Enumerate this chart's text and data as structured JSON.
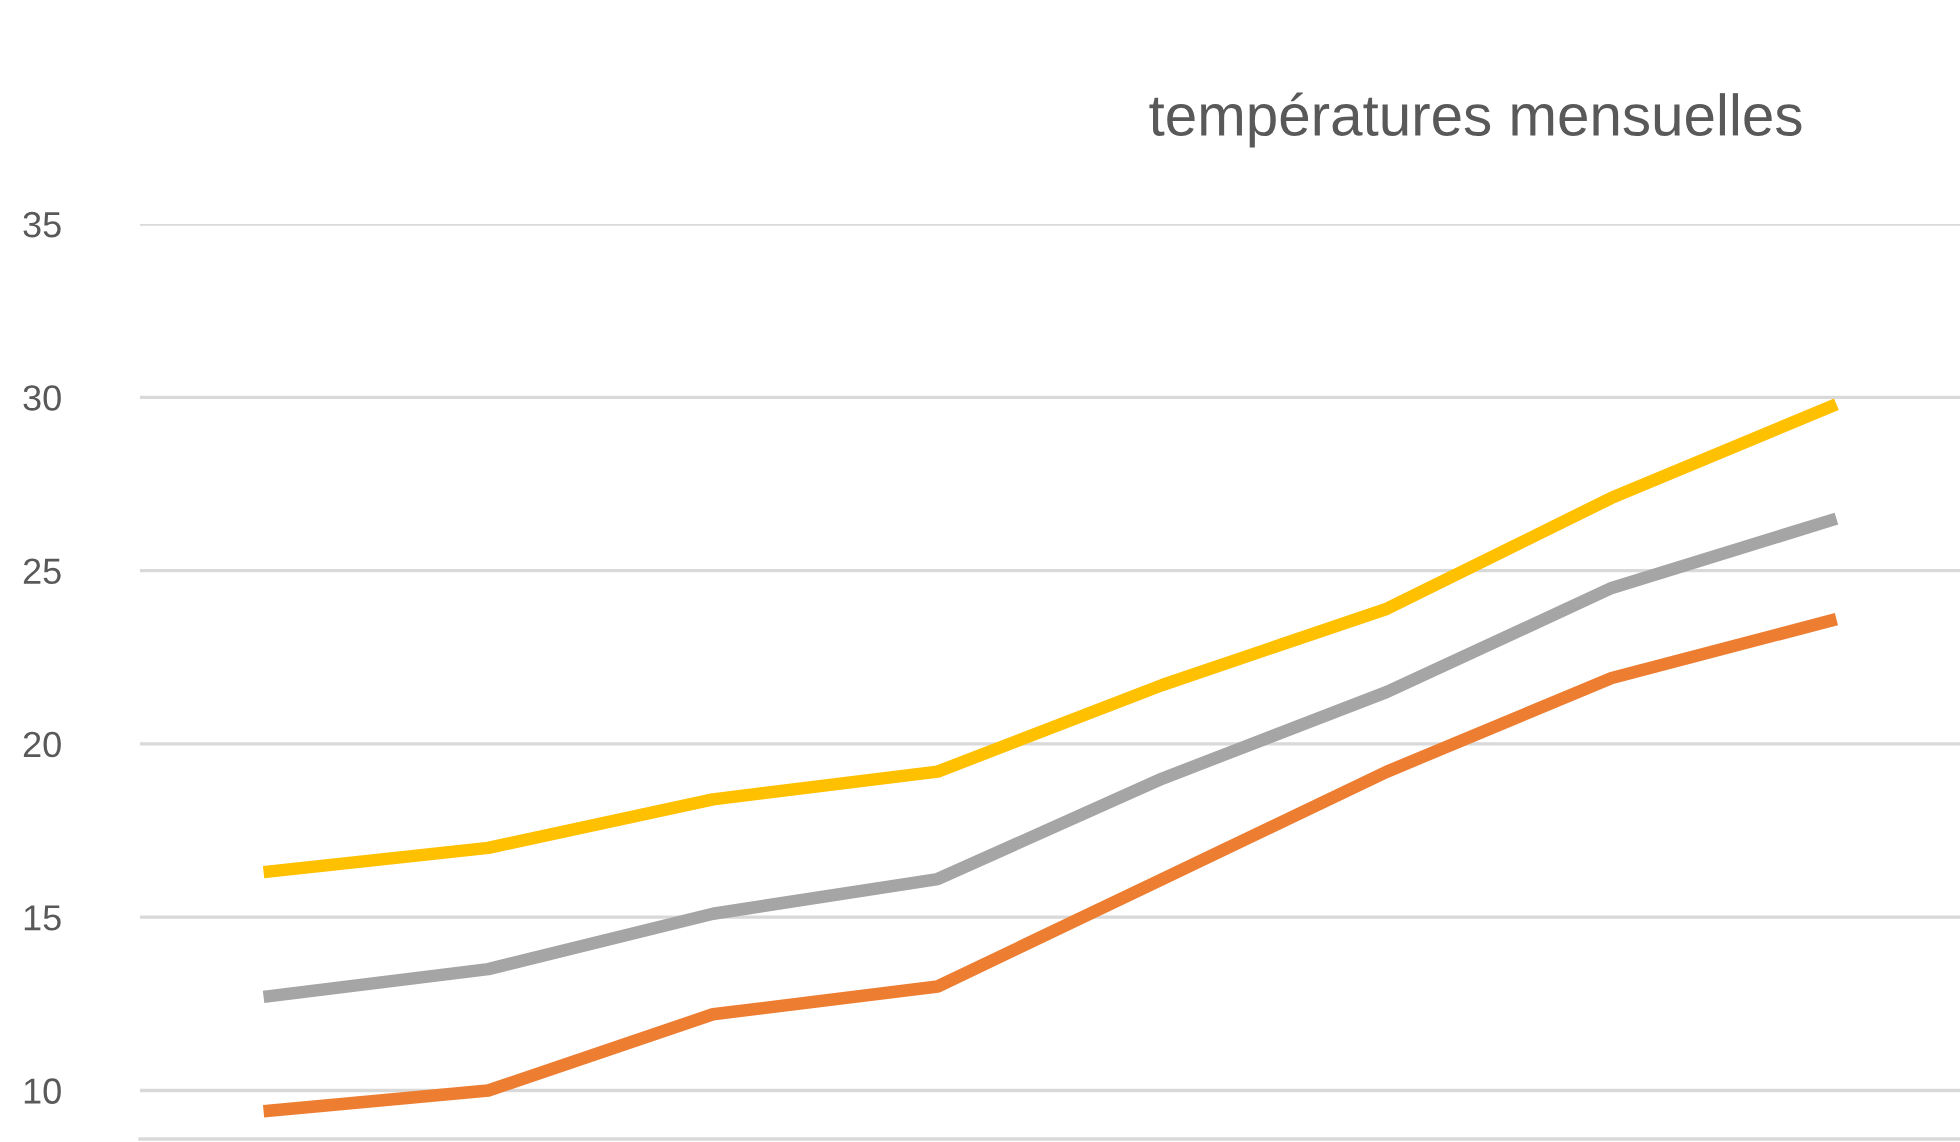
{
  "chart_data": {
    "type": "line",
    "title": "températures mensuelles",
    "categories": [
      null,
      null,
      null,
      null,
      null,
      null,
      null,
      null
    ],
    "series": [
      {
        "color": "#ffc000",
        "values": [
          16.3,
          17.0,
          18.4,
          19.2,
          21.7,
          23.9,
          27.1,
          29.8
        ]
      },
      {
        "color": "#a5a5a5",
        "values": [
          12.7,
          13.5,
          15.1,
          16.1,
          19.0,
          21.5,
          24.5,
          26.5
        ]
      },
      {
        "color": "#ed7d31",
        "values": [
          9.4,
          10.0,
          12.2,
          13.0,
          16.1,
          19.2,
          21.9,
          23.6
        ]
      }
    ],
    "ylim": [
      8.6,
      35
    ],
    "yticks": [
      10,
      15,
      20,
      25,
      30,
      35
    ],
    "grid": "y",
    "marker": "none",
    "line_style": "solid"
  }
}
